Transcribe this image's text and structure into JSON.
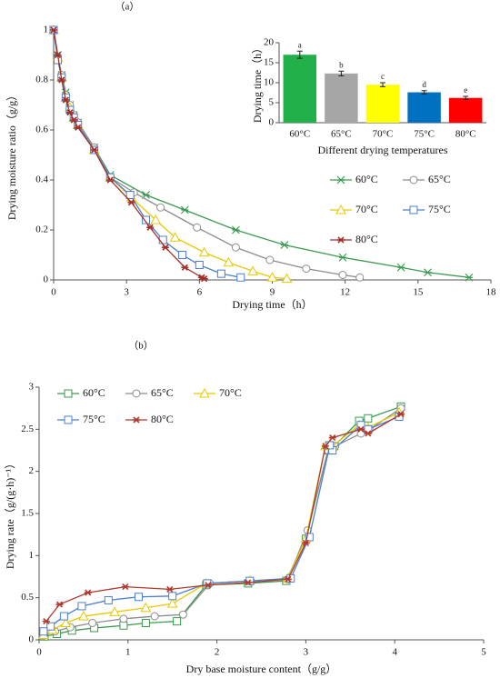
{
  "chart_data": [
    {
      "type": "line",
      "panel": "（a）",
      "xlabel": "Drying time（h）",
      "ylabel": "Drying moisture ratio（g/g）",
      "xlim": [
        0,
        18
      ],
      "xticks": [
        0,
        3,
        6,
        9,
        12,
        15,
        18
      ],
      "ylim": [
        0,
        1
      ],
      "yticks": [
        0,
        0.2,
        0.4,
        0.6,
        0.8,
        1
      ],
      "series": [
        {
          "name": "60°C",
          "color": "#3a9a4f",
          "marker": "asterisk",
          "x": [
            0,
            0.17,
            0.33,
            0.5,
            0.67,
            0.83,
            1,
            1.67,
            2.33,
            3.8,
            5.4,
            7.5,
            9.5,
            11.9,
            14.3,
            15.4,
            17.1
          ],
          "values": [
            1,
            0.9,
            0.82,
            0.75,
            0.7,
            0.66,
            0.63,
            0.53,
            0.42,
            0.34,
            0.28,
            0.2,
            0.14,
            0.09,
            0.05,
            0.03,
            0.01
          ]
        },
        {
          "name": "65°C",
          "color": "#8c8c8c",
          "marker": "circle",
          "x": [
            0,
            0.17,
            0.33,
            0.5,
            0.67,
            0.83,
            1,
            1.67,
            2.33,
            3.3,
            4.4,
            5.9,
            7.5,
            8.9,
            10.4,
            11.9,
            12.6
          ],
          "values": [
            1,
            0.89,
            0.82,
            0.74,
            0.7,
            0.66,
            0.63,
            0.53,
            0.41,
            0.35,
            0.29,
            0.21,
            0.13,
            0.08,
            0.045,
            0.02,
            0.01
          ]
        },
        {
          "name": "70°C",
          "color": "#e8c800",
          "marker": "triangle",
          "x": [
            0,
            0.17,
            0.33,
            0.5,
            0.67,
            0.83,
            1,
            1.67,
            2.33,
            3.2,
            4.2,
            5,
            6.2,
            7.2,
            8.2,
            9,
            9.6
          ],
          "values": [
            1,
            0.89,
            0.81,
            0.73,
            0.69,
            0.65,
            0.62,
            0.52,
            0.41,
            0.33,
            0.24,
            0.17,
            0.11,
            0.07,
            0.035,
            0.01,
            0.005
          ]
        },
        {
          "name": "75°C",
          "color": "#4a7fd4",
          "marker": "square",
          "x": [
            0,
            0.17,
            0.33,
            0.5,
            0.67,
            0.83,
            1,
            1.67,
            2.33,
            3.15,
            3.8,
            4.5,
            5.3,
            6,
            6.9,
            7.7
          ],
          "values": [
            1,
            0.88,
            0.81,
            0.73,
            0.68,
            0.65,
            0.62,
            0.52,
            0.41,
            0.34,
            0.24,
            0.16,
            0.1,
            0.06,
            0.025,
            0.01
          ]
        },
        {
          "name": "80°C",
          "color": "#a3302a",
          "marker": "star",
          "x": [
            0,
            0.17,
            0.33,
            0.5,
            0.67,
            0.83,
            1,
            1.67,
            2.33,
            3.2,
            3.97,
            4.6,
            5.4,
            6.1,
            6.2
          ],
          "values": [
            1,
            0.9,
            0.8,
            0.72,
            0.67,
            0.64,
            0.61,
            0.52,
            0.4,
            0.31,
            0.21,
            0.13,
            0.05,
            0.01,
            0.005
          ]
        }
      ]
    },
    {
      "type": "bar",
      "xlabel": "Different drying temperatures",
      "ylabel": "Drying time（h）",
      "categories": [
        "60°C",
        "65°C",
        "70°C",
        "75°C",
        "80°C"
      ],
      "values": [
        17,
        12.3,
        9.5,
        7.6,
        6.2
      ],
      "errors": [
        0.9,
        0.6,
        0.5,
        0.4,
        0.4
      ],
      "letters": [
        "a",
        "b",
        "c",
        "d",
        "e"
      ],
      "colors": [
        "#22b04b",
        "#a6a6a6",
        "#ffff00",
        "#0070c0",
        "#ff0000"
      ],
      "ylim": [
        0,
        20
      ],
      "yticks": [
        0,
        5,
        10,
        15,
        20
      ]
    },
    {
      "type": "line",
      "panel": "（b）",
      "xlabel": "Dry base moisture content（g/g）",
      "ylabel": "Drying rate（g/(g·h)⁻¹）",
      "xlim": [
        0,
        5
      ],
      "xticks": [
        0,
        1,
        2,
        3,
        4,
        5
      ],
      "ylim": [
        0,
        3
      ],
      "yticks": [
        0,
        0.5,
        1,
        1.5,
        2,
        2.5,
        3
      ],
      "series": [
        {
          "name": "60°C",
          "color": "#3a9a4f",
          "marker": "square",
          "x": [
            4.07,
            3.7,
            3.6,
            3.32,
            3.25,
            3.0,
            2.78,
            2.35,
            1.88,
            1.55,
            1.2,
            0.95,
            0.62,
            0.37,
            0.2,
            0.06
          ],
          "values": [
            2.77,
            2.63,
            2.6,
            2.3,
            2.25,
            1.2,
            0.7,
            0.67,
            0.65,
            0.22,
            0.2,
            0.17,
            0.14,
            0.11,
            0.07,
            0.04
          ]
        },
        {
          "name": "65°C",
          "color": "#8c8c8c",
          "marker": "circle",
          "x": [
            4.07,
            3.72,
            3.62,
            3.33,
            3.25,
            3.02,
            2.8,
            2.38,
            1.92,
            1.62,
            1.3,
            0.95,
            0.6,
            0.35,
            0.18,
            0.05
          ],
          "values": [
            2.75,
            2.5,
            2.45,
            2.3,
            2.25,
            1.3,
            0.72,
            0.7,
            0.67,
            0.3,
            0.28,
            0.25,
            0.2,
            0.15,
            0.1,
            0.05
          ]
        },
        {
          "name": "70°C",
          "color": "#e8c800",
          "marker": "triangle",
          "x": [
            4.05,
            3.7,
            3.6,
            3.3,
            3.22,
            3.0,
            2.8,
            2.37,
            1.88,
            1.5,
            1.2,
            0.85,
            0.5,
            0.3,
            0.15,
            0.05
          ],
          "values": [
            2.7,
            2.52,
            2.55,
            2.3,
            2.3,
            1.2,
            0.73,
            0.7,
            0.67,
            0.43,
            0.38,
            0.33,
            0.28,
            0.2,
            0.12,
            0.06
          ]
        },
        {
          "name": "75°C",
          "color": "#4a7fd4",
          "marker": "square",
          "x": [
            4.05,
            3.7,
            3.62,
            3.3,
            3.27,
            3.04,
            2.83,
            2.37,
            1.89,
            1.5,
            1.12,
            0.78,
            0.48,
            0.28,
            0.13,
            0.05
          ],
          "values": [
            2.65,
            2.5,
            2.55,
            2.25,
            2.31,
            1.22,
            0.73,
            0.7,
            0.67,
            0.52,
            0.51,
            0.47,
            0.4,
            0.28,
            0.16,
            0.1
          ]
        },
        {
          "name": "80°C",
          "color": "#b03a2e",
          "marker": "star",
          "x": [
            4.07,
            3.7,
            3.62,
            3.3,
            3.22,
            3.0,
            2.8,
            2.35,
            1.9,
            1.47,
            0.97,
            0.55,
            0.23,
            0.08
          ],
          "values": [
            2.68,
            2.45,
            2.5,
            2.4,
            2.3,
            1.15,
            0.72,
            0.68,
            0.65,
            0.6,
            0.63,
            0.56,
            0.42,
            0.22
          ]
        }
      ]
    }
  ]
}
